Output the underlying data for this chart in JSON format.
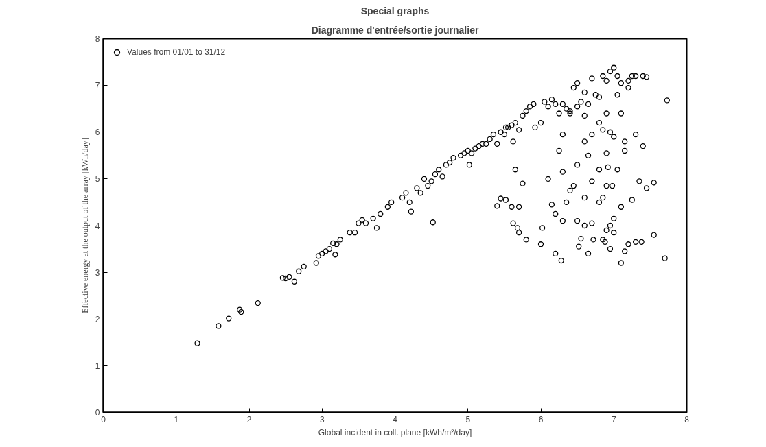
{
  "chart_data": {
    "type": "scatter",
    "title": "Special graphs",
    "subtitle": "Diagramme d'entrée/sortie journalier",
    "xlabel": "Global incident in coll. plane [kWh/m²/day]",
    "ylabel": "Effective energy at the output of the array [kWh/day]",
    "xlim": [
      0,
      8
    ],
    "ylim": [
      0,
      8
    ],
    "xticks": [
      0,
      1,
      2,
      3,
      4,
      5,
      6,
      7,
      8
    ],
    "yticks": [
      0,
      1,
      2,
      3,
      4,
      5,
      6,
      7,
      8
    ],
    "grid": false,
    "legend": "top left",
    "marker": "circle",
    "series": [
      {
        "name": "Values from 01/01 to 31/12",
        "color": "#000000",
        "x": [
          1.29,
          1.58,
          1.72,
          1.87,
          1.89,
          2.12,
          2.46,
          2.5,
          2.55,
          2.62,
          2.68,
          2.75,
          2.92,
          2.95,
          3.0,
          3.05,
          3.1,
          3.15,
          3.2,
          3.18,
          3.25,
          3.38,
          3.45,
          3.5,
          3.55,
          3.6,
          3.7,
          3.75,
          3.8,
          3.9,
          3.95,
          4.1,
          4.15,
          4.2,
          4.22,
          4.3,
          4.35,
          4.4,
          4.45,
          4.5,
          4.52,
          4.55,
          4.6,
          4.65,
          4.7,
          4.75,
          4.8,
          4.9,
          4.95,
          5.0,
          5.02,
          5.05,
          5.1,
          5.15,
          5.2,
          5.25,
          5.3,
          5.35,
          5.4,
          5.45,
          5.5,
          5.52,
          5.55,
          5.6,
          5.62,
          5.65,
          5.7,
          5.75,
          5.8,
          5.85,
          5.9,
          5.92,
          6.0,
          6.05,
          6.1,
          6.15,
          6.2,
          6.25,
          6.3,
          6.35,
          6.4,
          6.45,
          6.5,
          6.55,
          6.6,
          6.65,
          6.7,
          6.75,
          6.8,
          6.85,
          6.9,
          6.95,
          7.0,
          7.05,
          7.1,
          7.2,
          7.25,
          7.3,
          7.4,
          7.45,
          7.73,
          5.4,
          5.45,
          5.52,
          5.6,
          5.62,
          5.68,
          5.7,
          5.7,
          5.75,
          5.8,
          5.65,
          6.0,
          6.02,
          6.1,
          6.15,
          6.2,
          6.2,
          6.25,
          6.28,
          6.3,
          6.35,
          6.3,
          6.4,
          6.45,
          6.5,
          6.5,
          6.52,
          6.55,
          6.6,
          6.6,
          6.65,
          6.65,
          6.7,
          6.7,
          6.72,
          6.8,
          6.8,
          6.85,
          6.85,
          6.88,
          6.9,
          6.9,
          6.92,
          6.95,
          6.95,
          6.98,
          7.0,
          7.0,
          7.05,
          7.1,
          7.1,
          7.15,
          7.15,
          7.2,
          7.25,
          7.3,
          7.35,
          7.38,
          7.4,
          7.45,
          7.55,
          7.55,
          7.7,
          6.6,
          6.7,
          6.8,
          6.9,
          7.0,
          7.05,
          7.1,
          7.15,
          6.6,
          6.3,
          6.4,
          6.9,
          6.95,
          7.2,
          7.3,
          6.5,
          6.85
        ],
        "values": [
          1.48,
          1.85,
          2.01,
          2.2,
          2.15,
          2.34,
          2.88,
          2.87,
          2.9,
          2.8,
          3.02,
          3.12,
          3.2,
          3.35,
          3.4,
          3.45,
          3.5,
          3.62,
          3.6,
          3.38,
          3.7,
          3.85,
          3.85,
          4.05,
          4.12,
          4.05,
          4.15,
          3.95,
          4.25,
          4.4,
          4.5,
          4.6,
          4.7,
          4.5,
          4.3,
          4.8,
          4.7,
          5.0,
          4.85,
          4.95,
          4.07,
          5.1,
          5.2,
          5.05,
          5.3,
          5.35,
          5.45,
          5.5,
          5.55,
          5.6,
          5.3,
          5.55,
          5.65,
          5.7,
          5.75,
          5.75,
          5.85,
          5.95,
          5.75,
          6.0,
          5.95,
          6.1,
          6.1,
          6.15,
          5.8,
          6.2,
          6.05,
          6.35,
          6.45,
          6.55,
          6.6,
          6.1,
          6.2,
          6.65,
          6.55,
          6.7,
          6.6,
          6.4,
          6.6,
          6.5,
          6.4,
          6.95,
          7.05,
          6.65,
          6.85,
          6.6,
          7.15,
          6.8,
          6.75,
          7.2,
          7.1,
          7.3,
          7.38,
          7.2,
          7.05,
          7.1,
          7.2,
          7.2,
          7.2,
          7.18,
          6.68,
          4.42,
          4.58,
          4.55,
          4.4,
          4.05,
          3.95,
          4.4,
          3.85,
          4.9,
          3.7,
          5.2,
          3.6,
          3.95,
          5.0,
          4.45,
          3.4,
          4.25,
          5.6,
          3.25,
          4.1,
          4.5,
          5.15,
          4.75,
          4.85,
          5.3,
          4.1,
          3.55,
          3.72,
          4.0,
          4.6,
          5.5,
          3.4,
          4.05,
          4.95,
          3.7,
          4.5,
          5.2,
          4.6,
          3.7,
          3.65,
          4.85,
          3.9,
          5.25,
          4.0,
          3.5,
          4.85,
          3.85,
          4.15,
          5.2,
          3.2,
          4.4,
          3.45,
          5.8,
          3.6,
          4.55,
          3.65,
          4.95,
          3.65,
          5.7,
          4.8,
          4.92,
          3.8,
          3.3,
          6.35,
          5.95,
          6.2,
          6.4,
          5.9,
          6.8,
          6.4,
          5.6,
          5.8,
          5.95,
          6.45,
          5.55,
          6.0,
          6.95,
          5.95,
          6.55,
          6.05
        ]
      }
    ]
  }
}
